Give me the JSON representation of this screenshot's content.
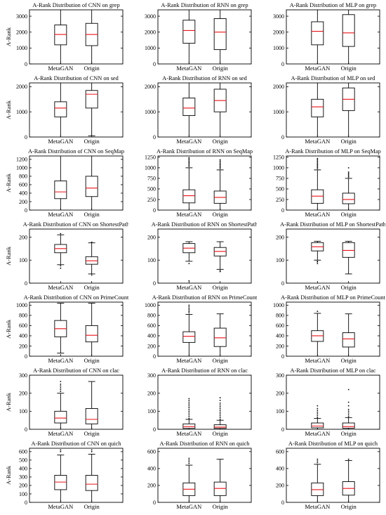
{
  "chart_data": [
    {
      "type": "box",
      "title": "A-Rank Distribution of CNN on grep",
      "ylabel": "A-Rank",
      "categories": [
        "MetaGAN",
        "Origin"
      ],
      "ylim": [
        0,
        3400
      ],
      "yticks": [
        0,
        1000,
        2000,
        3000
      ],
      "boxes": [
        {
          "whislo": 0,
          "q1": 1200,
          "med": 1850,
          "q3": 2450,
          "whishi": 3400,
          "fliers": []
        },
        {
          "whislo": 0,
          "q1": 1150,
          "med": 1850,
          "q3": 2550,
          "whishi": 3400,
          "fliers": []
        }
      ]
    },
    {
      "type": "box",
      "title": "A-Rank Distribution of RNN on grep",
      "ylabel": "",
      "categories": [
        "MetaGAN",
        "Origin"
      ],
      "ylim": [
        0,
        3400
      ],
      "yticks": [
        0,
        1000,
        2000,
        3000
      ],
      "boxes": [
        {
          "whislo": 0,
          "q1": 1300,
          "med": 2100,
          "q3": 2750,
          "whishi": 3400,
          "fliers": []
        },
        {
          "whislo": 0,
          "q1": 900,
          "med": 2000,
          "q3": 2850,
          "whishi": 3400,
          "fliers": []
        }
      ]
    },
    {
      "type": "box",
      "title": "A-Rank Distribution of MLP on grep",
      "ylabel": "",
      "categories": [
        "MetaGAN",
        "Origin"
      ],
      "ylim": [
        0,
        3400
      ],
      "yticks": [
        0,
        1000,
        2000,
        3000
      ],
      "boxes": [
        {
          "whislo": 0,
          "q1": 1200,
          "med": 2050,
          "q3": 2650,
          "whishi": 3400,
          "fliers": []
        },
        {
          "whislo": 0,
          "q1": 1100,
          "med": 1950,
          "q3": 3100,
          "whishi": 3400,
          "fliers": []
        }
      ]
    },
    {
      "type": "box",
      "title": "A-Rank Distribution of CNN on sed",
      "ylabel": "A-Rank",
      "categories": [
        "MetaGAN",
        "Origin"
      ],
      "ylim": [
        0,
        2150
      ],
      "yticks": [
        0,
        1000,
        2000
      ],
      "boxes": [
        {
          "whislo": 0,
          "q1": 800,
          "med": 1150,
          "q3": 1400,
          "whishi": 2150,
          "fliers": []
        },
        {
          "whislo": 50,
          "q1": 1150,
          "med": 1700,
          "q3": 1850,
          "whishi": 2150,
          "fliers": []
        }
      ]
    },
    {
      "type": "box",
      "title": "A-Rank Distribution of RNN on sed",
      "ylabel": "",
      "categories": [
        "MetaGAN",
        "Origin"
      ],
      "ylim": [
        0,
        2150
      ],
      "yticks": [
        0,
        1000,
        2000
      ],
      "boxes": [
        {
          "whislo": 0,
          "q1": 850,
          "med": 1150,
          "q3": 1550,
          "whishi": 2150,
          "fliers": []
        },
        {
          "whislo": 0,
          "q1": 1000,
          "med": 1450,
          "q3": 1900,
          "whishi": 2150,
          "fliers": []
        }
      ]
    },
    {
      "type": "box",
      "title": "A-Rank Distribution of MLP on sed",
      "ylabel": "",
      "categories": [
        "MetaGAN",
        "Origin"
      ],
      "ylim": [
        0,
        2150
      ],
      "yticks": [
        0,
        1000,
        2000
      ],
      "boxes": [
        {
          "whislo": 0,
          "q1": 800,
          "med": 1200,
          "q3": 1500,
          "whishi": 2150,
          "fliers": []
        },
        {
          "whislo": 0,
          "q1": 1050,
          "med": 1500,
          "q3": 1950,
          "whishi": 2150,
          "fliers": []
        }
      ]
    },
    {
      "type": "box",
      "title": "A-Rank Distribution of CNN on SeqMap",
      "ylabel": "A-Rank",
      "categories": [
        "MetaGAN",
        "Origin"
      ],
      "ylim": [
        0,
        1280
      ],
      "yticks": [
        0,
        200,
        400,
        600,
        800,
        1000,
        1200
      ],
      "boxes": [
        {
          "whislo": 0,
          "q1": 270,
          "med": 430,
          "q3": 690,
          "whishi": 1280,
          "fliers": []
        },
        {
          "whislo": 0,
          "q1": 320,
          "med": 520,
          "q3": 800,
          "whishi": 1280,
          "fliers": []
        }
      ]
    },
    {
      "type": "box",
      "title": "A-Rank Distribution of RNN on SeqMap",
      "ylabel": "",
      "categories": [
        "MetaGAN",
        "Origin"
      ],
      "ylim": [
        0,
        1280
      ],
      "yticks": [
        0,
        250,
        500,
        750,
        1000,
        1250
      ],
      "boxes": [
        {
          "whislo": 0,
          "q1": 170,
          "med": 340,
          "q3": 480,
          "whishi": 1000,
          "fliers": [
            1030,
            1060,
            1090,
            1120,
            1150,
            1180,
            1210,
            1240
          ]
        },
        {
          "whislo": 0,
          "q1": 160,
          "med": 300,
          "q3": 450,
          "whishi": 950,
          "fliers": [
            980,
            1010,
            1040,
            1070,
            1100,
            1130,
            1160,
            1190
          ]
        }
      ]
    },
    {
      "type": "box",
      "title": "A-Rank Distribution of MLP on SeqMap",
      "ylabel": "",
      "categories": [
        "MetaGAN",
        "Origin"
      ],
      "ylim": [
        0,
        1280
      ],
      "yticks": [
        0,
        250,
        500,
        750,
        1000,
        1250
      ],
      "boxes": [
        {
          "whislo": 0,
          "q1": 160,
          "med": 330,
          "q3": 480,
          "whishi": 950,
          "fliers": [
            980,
            1010,
            1040,
            1070,
            1100,
            1130,
            1160,
            1190,
            1220
          ]
        },
        {
          "whislo": 0,
          "q1": 150,
          "med": 250,
          "q3": 400,
          "whishi": 750,
          "fliers": [
            780,
            810,
            840,
            870,
            900,
            1000
          ]
        }
      ]
    },
    {
      "type": "box",
      "title": "A-Rank Distribution of CNN on ShortestPath",
      "ylabel": "A-Rank",
      "categories": [
        "MetaGAN",
        "Origin"
      ],
      "ylim": [
        0,
        235
      ],
      "yticks": [
        0,
        100,
        200
      ],
      "boxes": [
        {
          "whislo": 80,
          "q1": 132,
          "med": 150,
          "q3": 168,
          "whishi": 210,
          "fliers": [
            65,
            75,
            215
          ]
        },
        {
          "whislo": 40,
          "q1": 82,
          "med": 97,
          "q3": 115,
          "whishi": 175,
          "fliers": [
            178,
            35
          ]
        }
      ]
    },
    {
      "type": "box",
      "title": "A-Rank Distribution of RNN on ShortestPath",
      "ylabel": "",
      "categories": [
        "MetaGAN",
        "Origin"
      ],
      "ylim": [
        0,
        235
      ],
      "yticks": [
        0,
        100,
        200
      ],
      "boxes": [
        {
          "whislo": 95,
          "q1": 132,
          "med": 152,
          "q3": 172,
          "whishi": 180,
          "fliers": [
            85,
            10
          ]
        },
        {
          "whislo": 60,
          "q1": 118,
          "med": 138,
          "q3": 155,
          "whishi": 180,
          "fliers": [
            50,
            55
          ]
        }
      ]
    },
    {
      "type": "box",
      "title": "A-Rank Distribution of MLP on ShortestPath",
      "ylabel": "",
      "categories": [
        "MetaGAN",
        "Origin"
      ],
      "ylim": [
        0,
        235
      ],
      "yticks": [
        0,
        100,
        200
      ],
      "boxes": [
        {
          "whislo": 100,
          "q1": 140,
          "med": 158,
          "q3": 176,
          "whishi": 182,
          "fliers": [
            85,
            92,
            95
          ]
        },
        {
          "whislo": 40,
          "q1": 112,
          "med": 142,
          "q3": 176,
          "whishi": 182,
          "fliers": []
        }
      ]
    },
    {
      "type": "box",
      "title": "A-Rank Distribution of CNN on PrimeCount",
      "ylabel": "A-Rank",
      "categories": [
        "MetaGAN",
        "Origin"
      ],
      "ylim": [
        0,
        1060
      ],
      "yticks": [
        0,
        200,
        400,
        600,
        800,
        1000
      ],
      "boxes": [
        {
          "whislo": 60,
          "q1": 380,
          "med": 540,
          "q3": 700,
          "whishi": 1040,
          "fliers": []
        },
        {
          "whislo": 0,
          "q1": 280,
          "med": 410,
          "q3": 600,
          "whishi": 1040,
          "fliers": []
        }
      ]
    },
    {
      "type": "box",
      "title": "A-Rank Distribution of RNN on PrimeCount",
      "ylabel": "",
      "categories": [
        "MetaGAN",
        "Origin"
      ],
      "ylim": [
        0,
        1060
      ],
      "yticks": [
        0,
        200,
        400,
        600,
        800,
        1000
      ],
      "boxes": [
        {
          "whislo": 0,
          "q1": 270,
          "med": 390,
          "q3": 480,
          "whishi": 820,
          "fliers": [
            850,
            880,
            910,
            940,
            970,
            1000
          ]
        },
        {
          "whislo": 0,
          "q1": 190,
          "med": 360,
          "q3": 550,
          "whishi": 830,
          "fliers": []
        }
      ]
    },
    {
      "type": "box",
      "title": "A-Rank Distribution of MLP on PrimeCount",
      "ylabel": "",
      "categories": [
        "MetaGAN",
        "Origin"
      ],
      "ylim": [
        0,
        1060
      ],
      "yticks": [
        0,
        200,
        400,
        600,
        800,
        1000
      ],
      "boxes": [
        {
          "whislo": 0,
          "q1": 290,
          "med": 400,
          "q3": 500,
          "whishi": 840,
          "fliers": [
            880
          ]
        },
        {
          "whislo": 0,
          "q1": 180,
          "med": 340,
          "q3": 460,
          "whishi": 830,
          "fliers": []
        }
      ]
    },
    {
      "type": "box",
      "title": "A-Rank Distribution of CNN on clac",
      "ylabel": "A-Rank",
      "categories": [
        "MetaGAN",
        "Origin"
      ],
      "ylim": [
        0,
        300
      ],
      "yticks": [
        0,
        100,
        200,
        300
      ],
      "boxes": [
        {
          "whislo": 0,
          "q1": 35,
          "med": 62,
          "q3": 100,
          "whishi": 200,
          "fliers": [
            210,
            220,
            230,
            240,
            250,
            265
          ]
        },
        {
          "whislo": 0,
          "q1": 30,
          "med": 55,
          "q3": 115,
          "whishi": 265,
          "fliers": []
        }
      ]
    },
    {
      "type": "box",
      "title": "A-Rank Distribution of RNN on clac",
      "ylabel": "",
      "categories": [
        "MetaGAN",
        "Origin"
      ],
      "ylim": [
        0,
        300
      ],
      "yticks": [
        0,
        100,
        200,
        300
      ],
      "boxes": [
        {
          "whislo": 0,
          "q1": 5,
          "med": 15,
          "q3": 30,
          "whishi": 55,
          "fliers": [
            60,
            70,
            80,
            90,
            100,
            110,
            120,
            130,
            140,
            150,
            160,
            170
          ]
        },
        {
          "whislo": 0,
          "q1": 5,
          "med": 12,
          "q3": 25,
          "whishi": 50,
          "fliers": [
            55,
            65,
            75,
            85,
            95,
            105,
            115,
            125,
            135,
            145,
            160,
            175
          ]
        }
      ]
    },
    {
      "type": "box",
      "title": "A-Rank Distribution of MLP on clac",
      "ylabel": "",
      "categories": [
        "MetaGAN",
        "Origin"
      ],
      "ylim": [
        0,
        300
      ],
      "yticks": [
        0,
        100,
        200,
        300
      ],
      "boxes": [
        {
          "whislo": 0,
          "q1": 8,
          "med": 18,
          "q3": 35,
          "whishi": 60,
          "fliers": [
            65,
            75,
            85,
            95,
            105,
            115,
            130
          ]
        },
        {
          "whislo": 0,
          "q1": 6,
          "med": 15,
          "q3": 35,
          "whishi": 65,
          "fliers": [
            70,
            80,
            90,
            100,
            110,
            130,
            150,
            220
          ]
        }
      ]
    },
    {
      "type": "box",
      "title": "A-Rank Distribution of CNN on quich",
      "ylabel": "A-Rank",
      "categories": [
        "MetaGAN",
        "Origin"
      ],
      "ylim": [
        0,
        640
      ],
      "yticks": [
        0,
        100,
        200,
        300,
        400,
        500,
        600
      ],
      "boxes": [
        {
          "whislo": 0,
          "q1": 150,
          "med": 240,
          "q3": 320,
          "whishi": 560,
          "fliers": [
            600,
            620
          ]
        },
        {
          "whislo": 0,
          "q1": 140,
          "med": 215,
          "q3": 320,
          "whishi": 570,
          "fliers": [
            600,
            620
          ]
        }
      ]
    },
    {
      "type": "box",
      "title": "A-Rank Distribution of RNN on quich",
      "ylabel": "",
      "categories": [
        "MetaGAN",
        "Origin"
      ],
      "ylim": [
        0,
        640
      ],
      "yticks": [
        0,
        200,
        400,
        600
      ],
      "boxes": [
        {
          "whislo": 0,
          "q1": 80,
          "med": 155,
          "q3": 230,
          "whishi": 440,
          "fliers": [
            460,
            480,
            500,
            520
          ]
        },
        {
          "whislo": 0,
          "q1": 80,
          "med": 165,
          "q3": 240,
          "whishi": 510,
          "fliers": []
        }
      ]
    },
    {
      "type": "box",
      "title": "A-Rank Distribution of MLP on quich",
      "ylabel": "",
      "categories": [
        "MetaGAN",
        "Origin"
      ],
      "ylim": [
        0,
        640
      ],
      "yticks": [
        0,
        200,
        400,
        600
      ],
      "boxes": [
        {
          "whislo": 0,
          "q1": 80,
          "med": 150,
          "q3": 230,
          "whishi": 450,
          "fliers": [
            470,
            490,
            510
          ]
        },
        {
          "whislo": 0,
          "q1": 85,
          "med": 165,
          "q3": 245,
          "whishi": 495,
          "fliers": [
            510
          ]
        }
      ]
    }
  ]
}
